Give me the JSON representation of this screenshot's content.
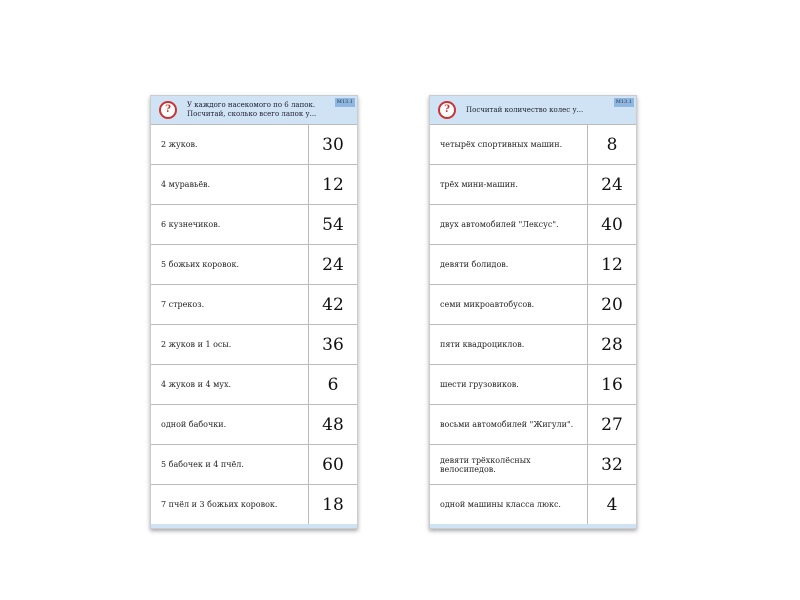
{
  "cards": [
    {
      "header": "У каждого насекомого по 6 лапок. Посчитай, сколько всего лапок у...",
      "badge": "М13.1",
      "rows": [
        [
          "2 жуков.",
          "30"
        ],
        [
          "4 муравьёв.",
          "12"
        ],
        [
          "6 кузнечиков.",
          "54"
        ],
        [
          "5 божьих коровок.",
          "24"
        ],
        [
          "7 стрекоз.",
          "42"
        ],
        [
          "2 жуков и 1 осы.",
          "36"
        ],
        [
          "4 жуков и 4 мух.",
          "6"
        ],
        [
          "одной бабочки.",
          "48"
        ],
        [
          "5 бабочек и 4 пчёл.",
          "60"
        ],
        [
          "7 пчёл и 3 божьих коровок.",
          "18"
        ]
      ]
    },
    {
      "header": "Посчитай количество колес у...",
      "badge": "М13.1",
      "rows": [
        [
          "четырёх спортивных машин.",
          "8"
        ],
        [
          "трёх мини-машин.",
          "24"
        ],
        [
          "двух автомобилей \"Лексус\".",
          "40"
        ],
        [
          "девяти болидов.",
          "12"
        ],
        [
          "семи микроавтобусов.",
          "20"
        ],
        [
          "пяти квадроциклов.",
          "28"
        ],
        [
          "шести грузовиков.",
          "16"
        ],
        [
          "восьми автомобилей \"Жигули\".",
          "27"
        ],
        [
          "девяти трёхколёсных велосипедов.",
          "32"
        ],
        [
          "одной машины класса люкс.",
          "4"
        ]
      ]
    }
  ]
}
